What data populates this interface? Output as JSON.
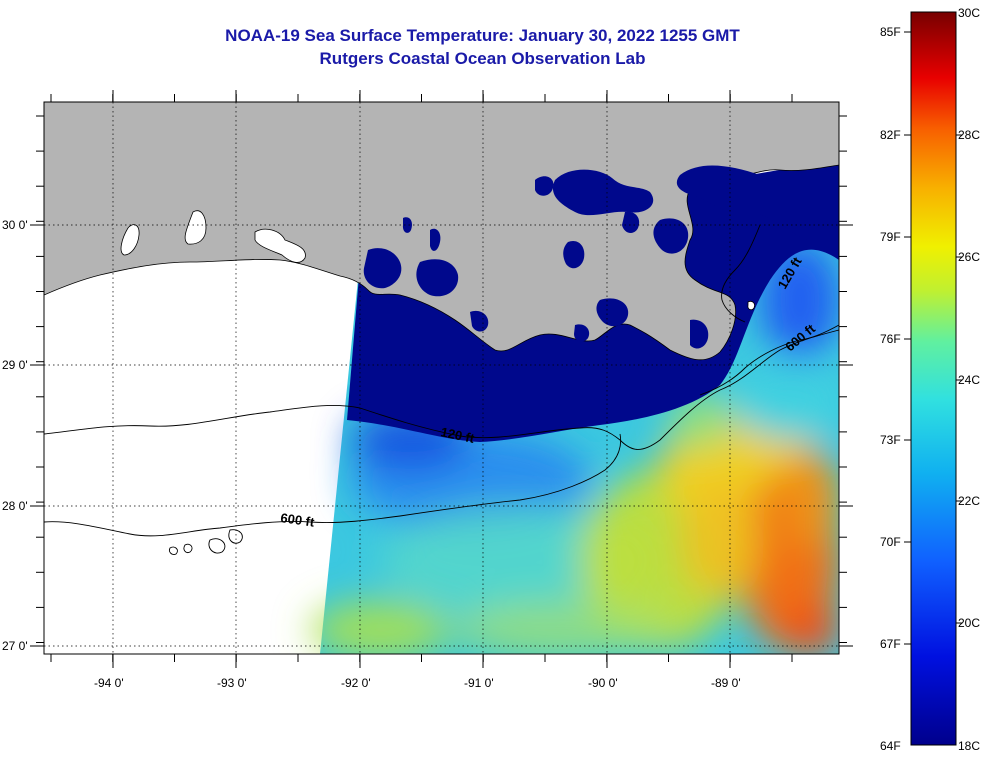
{
  "title": {
    "line1": "NOAA-19 Sea Surface Temperature:  January 30, 2022 1255 GMT",
    "line2": "Rutgers Coastal Ocean Observation Lab"
  },
  "map": {
    "lon_range": [
      -94.5,
      -88.25
    ],
    "lat_range": [
      26.95,
      30.85
    ],
    "lon_ticks": [
      "-94 0'",
      "-93 0'",
      "-92 0'",
      "-91 0'",
      "-90 0'",
      "-89 0'"
    ],
    "lat_ticks": [
      "30 0'",
      "29 0'",
      "28 0'",
      "27 0'"
    ],
    "contours": [
      {
        "label": "120 ft"
      },
      {
        "label": "600 ft"
      },
      {
        "label": "120 ft"
      },
      {
        "label": "600 ft"
      }
    ],
    "colors": {
      "land": "#b4b4b4",
      "no_data": "#ffffff",
      "cold_shelf": "#00088c",
      "mid_water": "#38c8e0",
      "warm_water": "#e8e020",
      "loop_current": "#f07818"
    }
  },
  "colorbar": {
    "fahrenheit_labels": [
      "85F",
      "82F",
      "79F",
      "76F",
      "73F",
      "70F",
      "67F",
      "64F"
    ],
    "celsius_labels": [
      "30C",
      "28C",
      "26C",
      "24C",
      "22C",
      "20C",
      "18C"
    ],
    "scale_min_c": 18,
    "scale_max_c": 30
  }
}
